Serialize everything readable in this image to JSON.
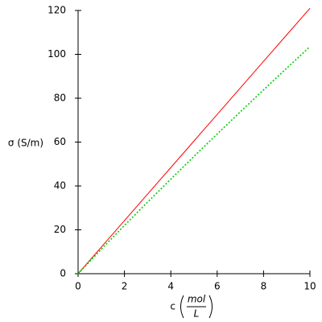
{
  "chart_data": {
    "type": "line",
    "x_label": {
      "symbol": "c",
      "numerator": "mol",
      "denominator": "L"
    },
    "y_label": "σ (S/m)",
    "x": [
      0,
      1,
      2,
      3,
      4,
      5,
      6,
      7,
      8,
      9,
      10
    ],
    "series": [
      {
        "color": "#ff0000",
        "style": "solid",
        "values": [
          0,
          12.1,
          24.2,
          36.3,
          48.4,
          60.5,
          72.6,
          84.7,
          96.8,
          108.9,
          121
        ]
      },
      {
        "color": "#00cc00",
        "style": "dotted",
        "values": [
          0,
          11.16,
          22.0,
          32.66,
          43.1,
          53.5,
          63.7,
          73.8,
          83.8,
          93.7,
          103.5
        ]
      }
    ],
    "xlim": [
      0,
      10
    ],
    "ylim": [
      0,
      120
    ],
    "xticks": [
      0,
      2,
      4,
      6,
      8,
      10
    ],
    "yticks": [
      0,
      20,
      40,
      60,
      80,
      100,
      120
    ]
  }
}
